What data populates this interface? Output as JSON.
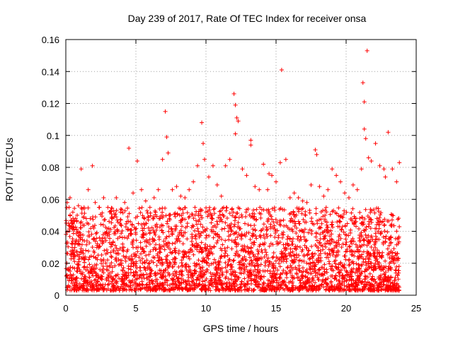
{
  "chart_data": {
    "type": "scatter",
    "title": "Day 239 of 2017, Rate Of TEC Index for receiver onsa",
    "xlabel": "GPS time / hours",
    "ylabel": "ROTI / TECUs",
    "xlim": [
      0,
      25
    ],
    "ylim": [
      0,
      0.16
    ],
    "x_ticks": [
      0,
      5,
      10,
      15,
      20,
      25
    ],
    "x_tick_labels": [
      "0",
      "5",
      "10",
      "15",
      "20",
      "25"
    ],
    "y_ticks": [
      0,
      0.02,
      0.04,
      0.06,
      0.08,
      0.1,
      0.12,
      0.14,
      0.16
    ],
    "y_tick_labels": [
      "0",
      "0.02",
      "0.04",
      "0.06",
      "0.08",
      "0.1",
      "0.12",
      "0.14",
      "0.16"
    ],
    "grid": true,
    "marker": "+",
    "marker_color": "#ff0000",
    "series": [
      {
        "x": [
          0.1,
          0.3,
          0.5,
          0.7,
          0.9,
          1.1,
          1.3,
          1.6,
          1.9,
          2.1,
          2.4,
          2.7,
          3.0,
          3.3,
          3.6,
          3.9,
          4.2,
          4.5,
          4.8,
          5.1,
          5.4,
          5.7,
          6.0,
          6.3,
          6.6,
          6.9,
          7.1,
          7.3,
          7.6,
          7.9,
          8.2,
          8.5,
          8.8,
          9.1,
          9.4,
          9.7,
          9.9,
          10.2,
          10.5,
          10.8,
          11.1,
          11.4,
          11.7,
          12.0,
          12.1,
          12.3,
          12.6,
          12.9,
          13.2,
          13.5,
          13.8,
          14.1,
          14.4,
          14.7,
          15.0,
          15.4,
          15.7,
          16.0,
          16.3,
          16.6,
          16.9,
          17.2,
          17.5,
          17.8,
          18.1,
          18.4,
          18.7,
          19.0,
          19.3,
          19.6,
          19.9,
          20.2,
          20.5,
          20.8,
          21.1,
          21.3,
          21.5,
          21.8,
          22.1,
          22.4,
          22.7,
          23.0,
          23.3,
          23.6,
          23.8,
          0.2,
          1.0,
          2.0,
          3.1,
          4.4,
          7.2,
          9.8,
          12.1,
          12.2,
          13.2,
          14.5,
          15.3,
          17.9,
          21.2,
          21.3,
          21.4,
          21.6,
          22.8
        ],
        "y": [
          0.058,
          0.061,
          0.052,
          0.048,
          0.056,
          0.079,
          0.055,
          0.066,
          0.081,
          0.058,
          0.055,
          0.061,
          0.055,
          0.049,
          0.061,
          0.052,
          0.058,
          0.092,
          0.064,
          0.084,
          0.066,
          0.059,
          0.055,
          0.061,
          0.066,
          0.085,
          0.115,
          0.089,
          0.066,
          0.068,
          0.062,
          0.061,
          0.066,
          0.071,
          0.081,
          0.108,
          0.085,
          0.074,
          0.081,
          0.069,
          0.062,
          0.081,
          0.085,
          0.126,
          0.119,
          0.109,
          0.079,
          0.075,
          0.097,
          0.068,
          0.066,
          0.082,
          0.066,
          0.075,
          0.071,
          0.141,
          0.085,
          0.061,
          0.064,
          0.061,
          0.059,
          0.058,
          0.069,
          0.091,
          0.068,
          0.062,
          0.066,
          0.079,
          0.075,
          0.071,
          0.064,
          0.061,
          0.069,
          0.066,
          0.079,
          0.104,
          0.153,
          0.084,
          0.095,
          0.081,
          0.079,
          0.102,
          0.079,
          0.071,
          0.083,
          0.045,
          0.039,
          0.042,
          0.038,
          0.041,
          0.099,
          0.095,
          0.101,
          0.111,
          0.094,
          0.076,
          0.083,
          0.088,
          0.133,
          0.121,
          0.098,
          0.086,
          0.074
        ]
      }
    ],
    "dense_band": {
      "x_range": [
        0,
        23.8
      ],
      "y_range": [
        0.003,
        0.055
      ]
    }
  }
}
